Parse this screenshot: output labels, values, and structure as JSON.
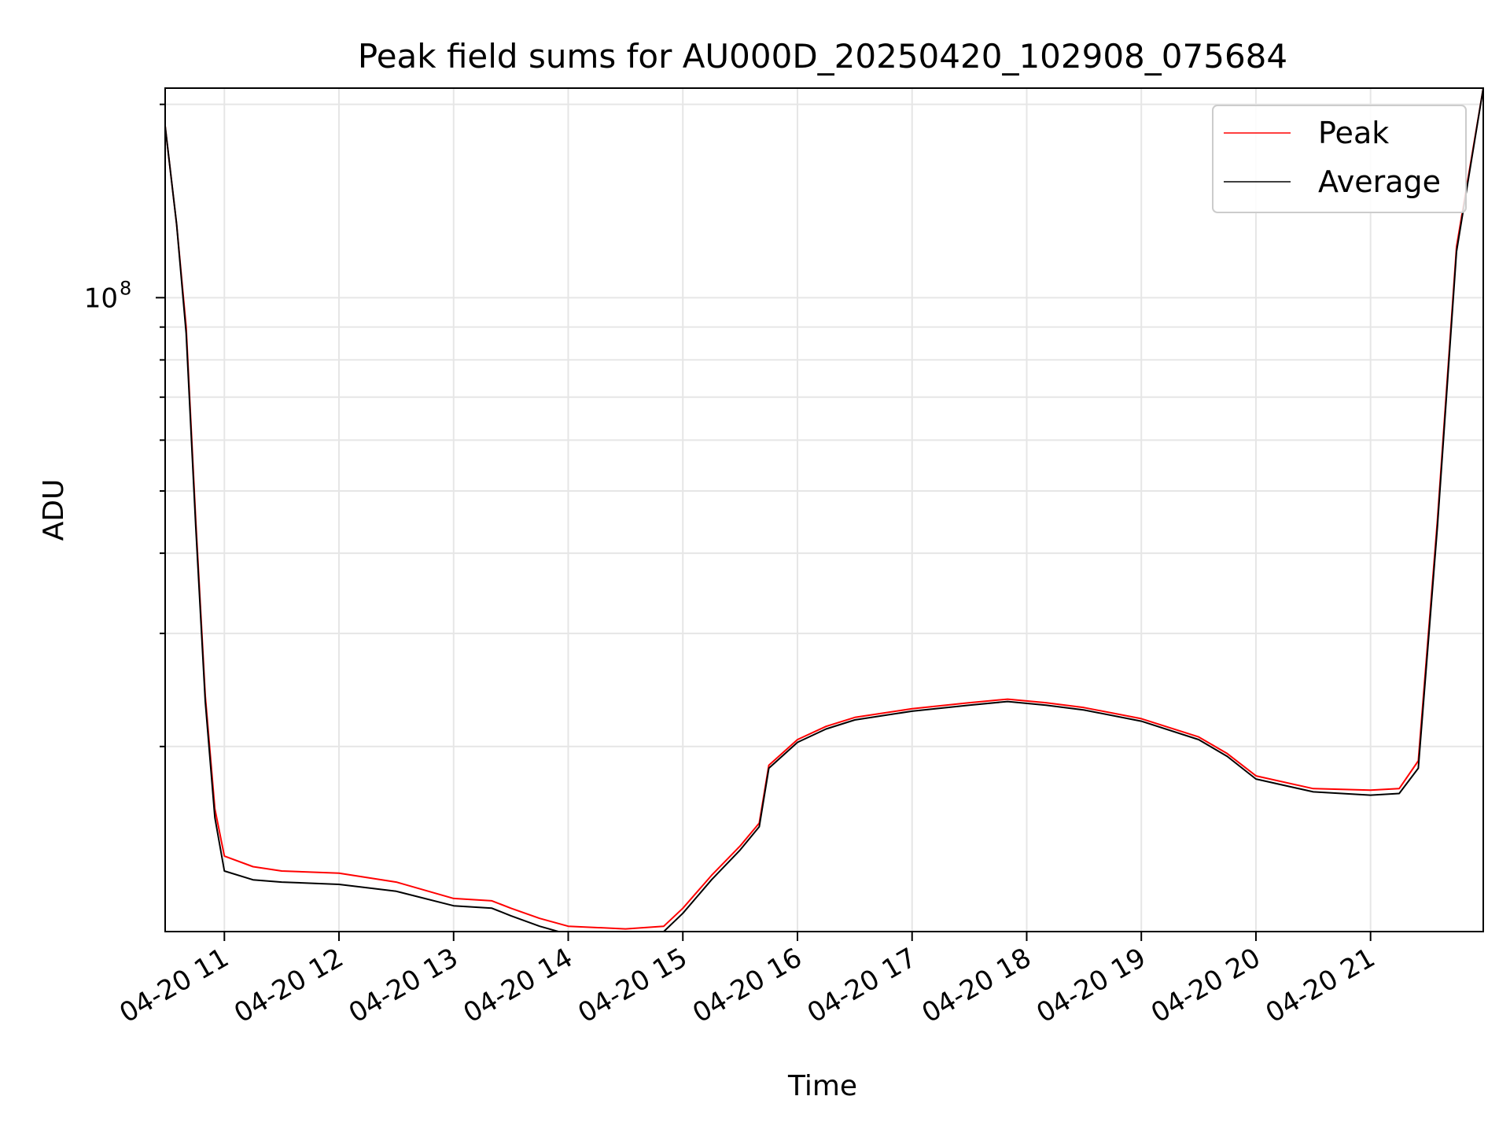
{
  "chart_data": {
    "type": "line",
    "title": "Peak field sums for AU000D_20250420_102908_075684",
    "xlabel": "Time",
    "ylabel": "ADU",
    "yscale": "log",
    "grid": true,
    "legend_position": "top-right",
    "xlim": [
      "04-20 10:29",
      "04-20 21:59"
    ],
    "ylim": [
      10300000,
      212000000
    ],
    "x_tick_labels": [
      "04-20 11",
      "04-20 12",
      "04-20 13",
      "04-20 14",
      "04-20 15",
      "04-20 16",
      "04-20 17",
      "04-20 18",
      "04-20 19",
      "04-20 20",
      "04-20 21"
    ],
    "y_tick_label": {
      "base": "10",
      "exponent": "8",
      "value": 100000000
    },
    "colors": {
      "peak": "#ff0000",
      "average": "#000000",
      "grid": "#e6e6e6"
    },
    "x": [
      "04-20 10:29",
      "04-20 10:35",
      "04-20 10:40",
      "04-20 10:45",
      "04-20 10:50",
      "04-20 10:55",
      "04-20 11:00",
      "04-20 11:15",
      "04-20 11:30",
      "04-20 12:00",
      "04-20 12:30",
      "04-20 13:00",
      "04-20 13:20",
      "04-20 13:30",
      "04-20 13:45",
      "04-20 14:00",
      "04-20 14:30",
      "04-20 14:50",
      "04-20 15:00",
      "04-20 15:15",
      "04-20 15:30",
      "04-20 15:40",
      "04-20 15:45",
      "04-20 16:00",
      "04-20 16:15",
      "04-20 16:30",
      "04-20 17:00",
      "04-20 17:30",
      "04-20 17:50",
      "04-20 18:10",
      "04-20 18:30",
      "04-20 19:00",
      "04-20 19:30",
      "04-20 19:45",
      "04-20 20:00",
      "04-20 20:30",
      "04-20 21:00",
      "04-20 21:15",
      "04-20 21:25",
      "04-20 21:35",
      "04-20 21:45",
      "04-20 21:59"
    ],
    "series": [
      {
        "name": "Peak",
        "values": [
          185000000,
          130000000,
          90000000,
          45000000,
          24000000,
          16000000,
          13500000,
          13000000,
          12800000,
          12700000,
          12300000,
          11600000,
          11500000,
          11200000,
          10800000,
          10500000,
          10400000,
          10500000,
          11200000,
          12600000,
          14000000,
          15200000,
          18700000,
          20500000,
          21500000,
          22200000,
          22900000,
          23400000,
          23700000,
          23400000,
          23000000,
          22100000,
          20700000,
          19500000,
          18000000,
          17200000,
          17100000,
          17200000,
          19000000,
          45000000,
          120000000,
          212000000
        ]
      },
      {
        "name": "Average",
        "values": [
          185000000,
          130000000,
          88000000,
          44000000,
          23500000,
          15500000,
          12800000,
          12400000,
          12300000,
          12200000,
          11900000,
          11300000,
          11200000,
          10900000,
          10500000,
          10200000,
          10200000,
          10300000,
          11000000,
          12400000,
          13800000,
          15000000,
          18500000,
          20300000,
          21300000,
          22000000,
          22700000,
          23200000,
          23500000,
          23200000,
          22800000,
          21900000,
          20500000,
          19300000,
          17800000,
          17000000,
          16800000,
          16900000,
          18500000,
          44000000,
          118000000,
          212000000
        ]
      }
    ]
  }
}
